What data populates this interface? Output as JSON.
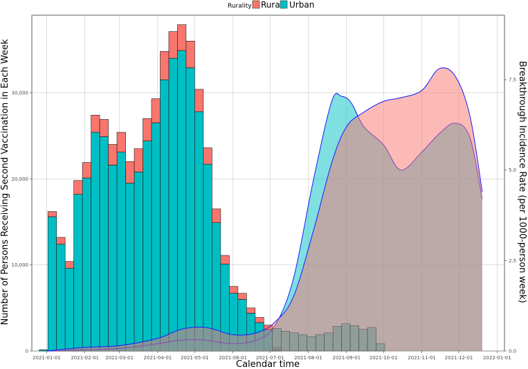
{
  "chart_data": {
    "type": "bar",
    "xlabel": "Calendar time",
    "ylabel": "Number of Persons Receiving Second Vaccination in Each Week",
    "y2label": "Breakthrough Incidence Rate (per 1000-person week)",
    "legend": {
      "title": "Rurality",
      "placement": "top",
      "items": [
        {
          "label": "Rural",
          "color": "#F8766D"
        },
        {
          "label": "Urban",
          "color": "#00BFC4"
        }
      ]
    },
    "xlim": [
      "2020-12-20",
      "2022-01-07"
    ],
    "ylim": [
      0,
      39000
    ],
    "y2lim": [
      0,
      9.28
    ],
    "x_ticks": [
      "2021-01-01",
      "2021-02-01",
      "2021-03-01",
      "2021-04-01",
      "2021-05-01",
      "2021-06-01",
      "2021-07-01",
      "2021-08-01",
      "2021-09-01",
      "2021-10-01",
      "2021-11-01",
      "2021-12-01",
      "2022-01-01"
    ],
    "y_ticks": [
      0,
      10000,
      20000,
      30000
    ],
    "y_tick_labels": [
      "0",
      "10,000",
      "20,000",
      "30,000"
    ],
    "y2_ticks": [
      0,
      2.5,
      5.0,
      7.5
    ],
    "y2_tick_labels": [
      "0.0",
      "2.5",
      "5.0",
      "7.5"
    ],
    "grid": true,
    "bar_width_days": 7,
    "bar_series": [
      {
        "name": "Urban",
        "color": "#00BFC4",
        "x": [
          "2020-12-26",
          "2021-01-02",
          "2021-01-09",
          "2021-01-16",
          "2021-01-23",
          "2021-01-30",
          "2021-02-06",
          "2021-02-13",
          "2021-02-20",
          "2021-02-27",
          "2021-03-06",
          "2021-03-13",
          "2021-03-20",
          "2021-03-27",
          "2021-04-03",
          "2021-04-10",
          "2021-04-17",
          "2021-04-24",
          "2021-05-01",
          "2021-05-08",
          "2021-05-15",
          "2021-05-22",
          "2021-05-29",
          "2021-06-05",
          "2021-06-12",
          "2021-06-19",
          "2021-06-26",
          "2021-07-03"
        ],
        "values": [
          150,
          15600,
          12400,
          9600,
          18200,
          20100,
          25400,
          24900,
          21600,
          23100,
          19500,
          20800,
          24400,
          26500,
          31500,
          34000,
          34900,
          32900,
          27800,
          21700,
          14900,
          10100,
          6700,
          6000,
          4400,
          3300,
          2500,
          100
        ]
      },
      {
        "name": "Rural",
        "color": "#F8766D",
        "x": [
          "2021-01-02",
          "2021-01-09",
          "2021-01-16",
          "2021-01-23",
          "2021-01-30",
          "2021-02-06",
          "2021-02-13",
          "2021-02-20",
          "2021-02-27",
          "2021-03-06",
          "2021-03-13",
          "2021-03-20",
          "2021-03-27",
          "2021-04-03",
          "2021-04-10",
          "2021-04-17",
          "2021-04-24",
          "2021-05-01",
          "2021-05-08",
          "2021-05-15",
          "2021-05-22",
          "2021-05-29",
          "2021-06-05",
          "2021-06-12",
          "2021-06-19",
          "2021-06-26",
          "2021-07-03"
        ],
        "values": [
          600,
          800,
          800,
          1600,
          1800,
          2000,
          2000,
          2400,
          2300,
          2500,
          2700,
          2600,
          2800,
          3300,
          3100,
          3000,
          3100,
          2600,
          1900,
          1600,
          1000,
          800,
          700,
          600,
          600,
          500,
          300
        ]
      }
    ],
    "density_series": [
      {
        "name": "Urban",
        "color": "#00BFC4",
        "outline": "#1a1aff",
        "x": [
          "2021-01-01",
          "2021-02-01",
          "2021-03-01",
          "2021-04-01",
          "2021-04-20",
          "2021-05-10",
          "2021-06-01",
          "2021-06-20",
          "2021-07-05",
          "2021-07-20",
          "2021-08-05",
          "2021-08-20",
          "2021-08-28",
          "2021-09-05",
          "2021-09-15",
          "2021-10-01",
          "2021-10-15",
          "2021-11-01",
          "2021-11-15",
          "2021-11-28",
          "2021-12-10",
          "2021-12-20"
        ],
        "values": [
          0.0,
          0.03,
          0.07,
          0.2,
          0.3,
          0.3,
          0.2,
          0.3,
          0.7,
          2.0,
          4.7,
          6.9,
          7.04,
          6.85,
          6.2,
          5.7,
          5.0,
          5.5,
          6.0,
          6.3,
          5.9,
          4.2
        ]
      },
      {
        "name": "Rural",
        "color": "#F8766D",
        "outline": "#1a1aff",
        "x": [
          "2021-01-01",
          "2021-02-01",
          "2021-03-01",
          "2021-04-01",
          "2021-04-20",
          "2021-05-10",
          "2021-06-01",
          "2021-06-20",
          "2021-07-05",
          "2021-07-20",
          "2021-08-05",
          "2021-08-20",
          "2021-09-01",
          "2021-09-15",
          "2021-10-01",
          "2021-10-15",
          "2021-11-01",
          "2021-11-15",
          "2021-11-28",
          "2021-12-10",
          "2021-12-20"
        ],
        "values": [
          0.0,
          0.1,
          0.15,
          0.35,
          0.6,
          0.65,
          0.45,
          0.5,
          0.8,
          1.5,
          3.3,
          5.2,
          6.2,
          6.6,
          6.9,
          7.0,
          7.2,
          7.8,
          7.6,
          6.5,
          4.4
        ]
      }
    ],
    "overlay_bars": {
      "color": "#5f8f88",
      "x": [
        "2021-07-03",
        "2021-07-10",
        "2021-07-17",
        "2021-07-24",
        "2021-07-31",
        "2021-08-07",
        "2021-08-14",
        "2021-08-21",
        "2021-08-28",
        "2021-09-04",
        "2021-09-11",
        "2021-09-18",
        "2021-09-25"
      ],
      "values": [
        0.62,
        0.55,
        0.5,
        0.45,
        0.4,
        0.45,
        0.5,
        0.68,
        0.75,
        0.7,
        0.6,
        0.65,
        0.2
      ]
    }
  }
}
